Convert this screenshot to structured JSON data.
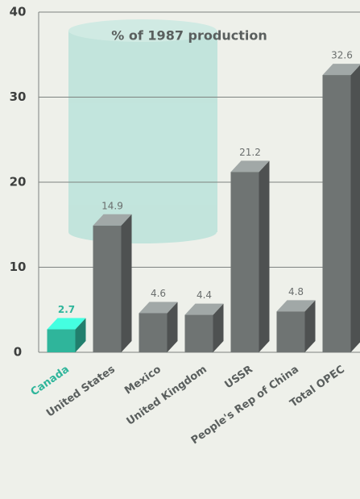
{
  "chart_data": {
    "type": "bar3d",
    "title": "% of 1987 production",
    "categories": [
      "Canada",
      "United States",
      "Mexico",
      "United Kingdom",
      "USSR",
      "People's Rep of China",
      "Total OPEC"
    ],
    "values": [
      2.7,
      14.9,
      4.6,
      4.4,
      21.2,
      4.8,
      32.6
    ],
    "colors": [
      "#2fb59b",
      "#6f7473",
      "#6f7473",
      "#6f7473",
      "#6f7473",
      "#6f7473",
      "#6f7473"
    ],
    "ylim": [
      0,
      40
    ],
    "yticks": [
      0,
      10,
      20,
      30,
      40
    ],
    "grid": true
  }
}
